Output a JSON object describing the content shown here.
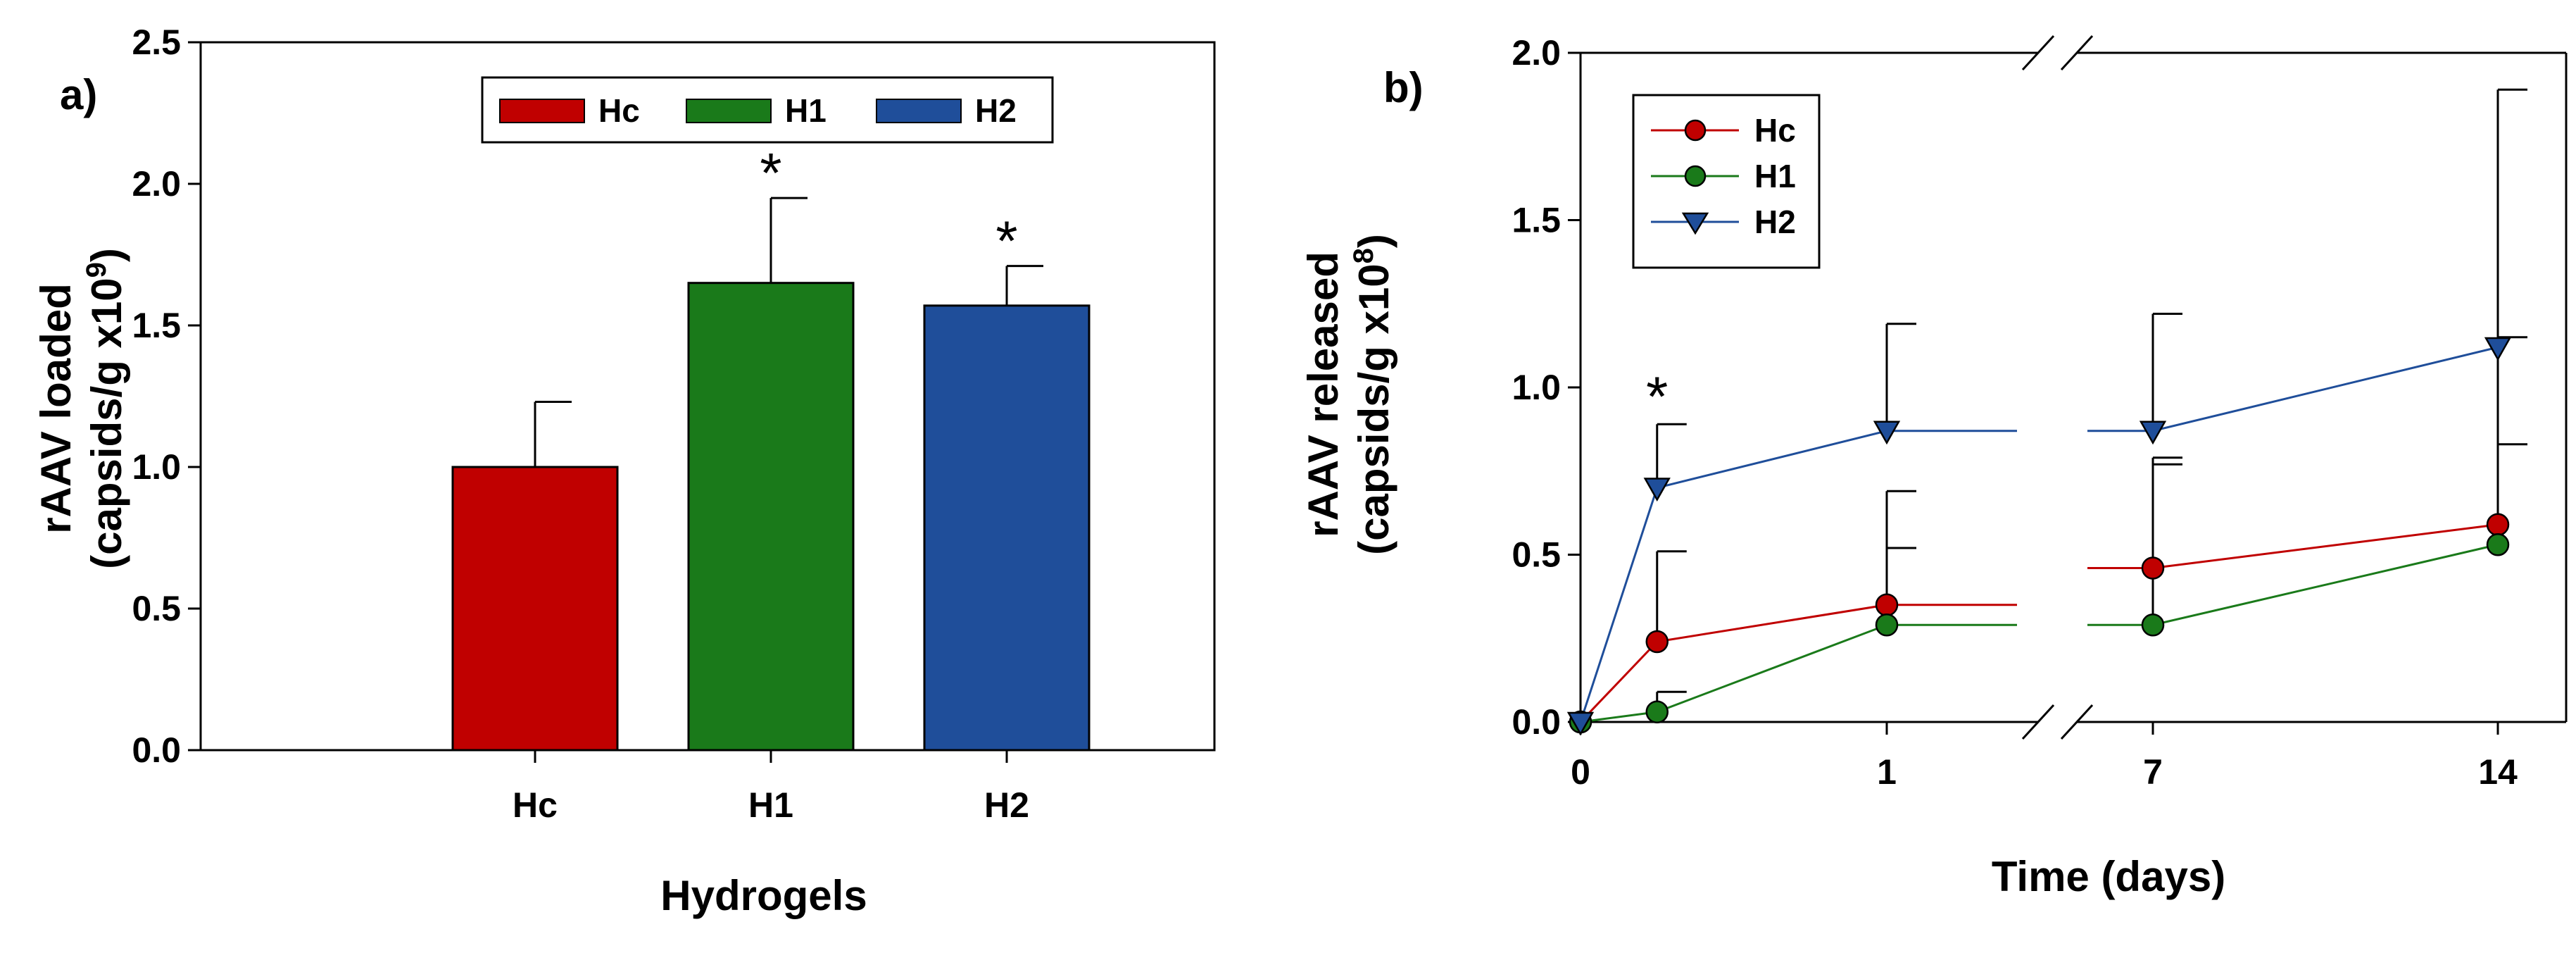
{
  "chart_data": [
    {
      "panel_label": "a)",
      "type": "bar",
      "xlabel": "Hydrogels",
      "ylabel": [
        "rAAV loaded",
        "(capsids/g x10",
        "9",
        ")"
      ],
      "ylim": [
        0,
        2.5
      ],
      "yticks": [
        "0.0",
        "0.5",
        "1.0",
        "1.5",
        "2.0",
        "2.5"
      ],
      "categories": [
        "Hc",
        "H1",
        "H2"
      ],
      "series": [
        {
          "name": "Hc",
          "category": "Hc",
          "value": 1.0,
          "error": 0.23,
          "color": "#c00000",
          "significant": false
        },
        {
          "name": "H1",
          "category": "H1",
          "value": 1.65,
          "error": 0.3,
          "color": "#1a7a1a",
          "significant": true
        },
        {
          "name": "H2",
          "category": "H2",
          "value": 1.57,
          "error": 0.14,
          "color": "#1f4e9a",
          "significant": true
        }
      ],
      "significance_mark": "*",
      "legend_placement": "top-center",
      "grid": false
    },
    {
      "panel_label": "b)",
      "type": "line",
      "xlabel": "Time (days)",
      "ylabel": [
        "rAAV released",
        "(capsids/g x10",
        "8",
        ")"
      ],
      "ylim": [
        0,
        2.0
      ],
      "yticks": [
        "0.0",
        "0.5",
        "1.0",
        "1.5",
        "2.0"
      ],
      "x_tick_labels": [
        "0",
        "1",
        "7",
        "14"
      ],
      "x_axis_break": "between 1 and 7",
      "series": [
        {
          "name": "Hc",
          "color": "#c00000",
          "marker": "circle",
          "points": [
            {
              "x": 0,
              "y": 0.0,
              "err": 0
            },
            {
              "x": 0.25,
              "y": 0.24,
              "err": 0.27
            },
            {
              "x": 1,
              "y": 0.35,
              "err": 0.34
            },
            {
              "x": 7,
              "y": 0.46,
              "err": 0.33
            },
            {
              "x": 14,
              "y": 0.59,
              "err": 0.56
            }
          ]
        },
        {
          "name": "H1",
          "color": "#1a7a1a",
          "marker": "circle",
          "points": [
            {
              "x": 0,
              "y": 0.0,
              "err": 0
            },
            {
              "x": 0.25,
              "y": 0.03,
              "err": 0.06
            },
            {
              "x": 1,
              "y": 0.29,
              "err": 0.23
            },
            {
              "x": 7,
              "y": 0.29,
              "err": 0.48
            },
            {
              "x": 14,
              "y": 0.53,
              "err": 0.3
            }
          ]
        },
        {
          "name": "H2",
          "color": "#1f4e9a",
          "marker": "triangle-down",
          "points": [
            {
              "x": 0,
              "y": 0.0,
              "err": 0
            },
            {
              "x": 0.25,
              "y": 0.7,
              "err": 0.19
            },
            {
              "x": 1,
              "y": 0.87,
              "err": 0.32
            },
            {
              "x": 7,
              "y": 0.87,
              "err": 0.35
            },
            {
              "x": 14,
              "y": 1.12,
              "err": 0.77
            }
          ]
        }
      ],
      "significance": [
        {
          "x": 0.25,
          "mark": "*"
        }
      ],
      "legend_placement": "top-left",
      "grid": false
    }
  ]
}
